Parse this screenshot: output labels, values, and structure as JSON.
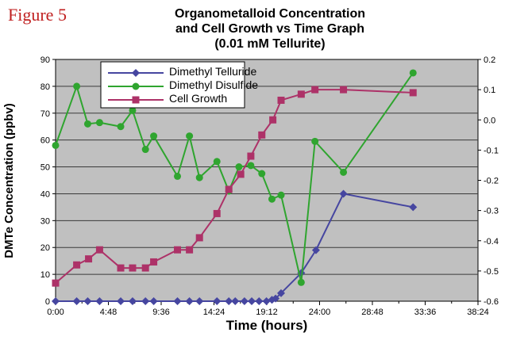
{
  "figure_label": "Figure 5",
  "title_lines": [
    "Organometalloid Concentration",
    "and Cell Growth vs Time Graph",
    "(0.01 mM Tellurite)"
  ],
  "colors": {
    "figure_label": "#c02020",
    "plot_background": "#c0c0c0",
    "gridline": "#3a3a3a",
    "axis_line": "#000000",
    "legend_background": "#ffffff"
  },
  "chart_data": {
    "type": "line",
    "title": "Organometalloid Concentration and Cell Growth vs Time Graph (0.01 mM Tellurite)",
    "xlabel": "Time (hours)",
    "ylabel_left": "DMTe Concentration (ppbv)",
    "grid": true,
    "legend_position": "top-left-inside",
    "x_axis": {
      "label": "Time (hours)",
      "min_hours": 0,
      "max_hours": 38.4,
      "major_step_hours": 4.8,
      "minor_step_hours": 2.4,
      "tick_labels": [
        "0:00",
        "4:48",
        "9:36",
        "14:24",
        "19:12",
        "24:00",
        "28:48",
        "33:36",
        "38:24"
      ]
    },
    "y_axis_left": {
      "label": "DMTe Concentration (ppbv)",
      "min": 0,
      "max": 90,
      "tick_labels": [
        "0",
        "10",
        "20",
        "30",
        "40",
        "50",
        "60",
        "70",
        "80",
        "90"
      ]
    },
    "y_axis_right": {
      "label": "",
      "min": -0.6,
      "max": 0.2,
      "tick_labels": [
        "-0.6",
        "-0.5",
        "-0.4",
        "-0.3",
        "-0.2",
        "-0.1",
        "0.0",
        "0.1",
        "0.2"
      ]
    },
    "series": [
      {
        "name": "Dimethyl Telluride",
        "color": "#4646a0",
        "marker": "diamond",
        "axis": "left",
        "x_hours": [
          0,
          1.92,
          2.92,
          4.0,
          5.92,
          7.0,
          8.17,
          8.92,
          11.08,
          12.17,
          13.08,
          14.67,
          15.75,
          16.33,
          17.17,
          17.83,
          18.5,
          19.17,
          19.67,
          20.0,
          20.5,
          22.33,
          23.67,
          26.17,
          32.5
        ],
        "y": [
          0,
          0,
          0,
          0,
          0,
          0,
          0,
          0,
          0,
          0,
          0,
          0,
          0,
          0,
          0,
          0,
          0,
          0,
          0.5,
          1,
          3,
          10.5,
          19,
          40,
          35
        ]
      },
      {
        "name": "Dimethyl Disulfide",
        "color": "#2fa52f",
        "marker": "circle",
        "axis": "left",
        "x_hours": [
          0,
          1.92,
          2.92,
          4.0,
          5.92,
          7.0,
          8.17,
          8.92,
          11.08,
          12.17,
          13.08,
          14.67,
          15.75,
          16.67,
          17.75,
          18.75,
          19.67,
          20.5,
          22.33,
          23.58,
          26.17,
          32.5
        ],
        "y": [
          58,
          80,
          66,
          66.5,
          65,
          71,
          56.5,
          61.5,
          46.5,
          61.5,
          46,
          52,
          41,
          50,
          50.5,
          47.5,
          38,
          39.5,
          7,
          59.5,
          48,
          85
        ]
      },
      {
        "name": "Cell Growth",
        "color": "#ad3268",
        "marker": "square",
        "axis": "right",
        "x_hours": [
          0,
          1.92,
          3.0,
          4.0,
          5.92,
          7.0,
          8.17,
          8.92,
          11.08,
          12.17,
          13.08,
          14.67,
          15.75,
          16.83,
          17.75,
          18.75,
          19.75,
          20.5,
          22.33,
          23.58,
          26.17,
          32.5
        ],
        "y": [
          -0.54,
          -0.48,
          -0.46,
          -0.43,
          -0.49,
          -0.49,
          -0.49,
          -0.47,
          -0.43,
          -0.43,
          -0.39,
          -0.31,
          -0.23,
          -0.18,
          -0.12,
          -0.05,
          0.0,
          0.065,
          0.085,
          0.1,
          0.1,
          0.09
        ]
      }
    ]
  }
}
